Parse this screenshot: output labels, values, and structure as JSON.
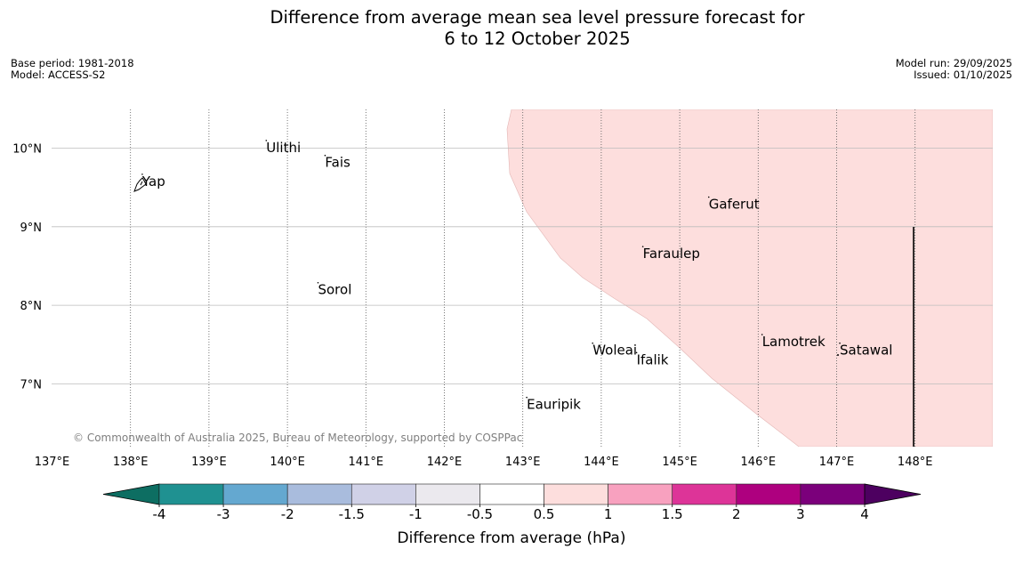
{
  "title": {
    "line1": "Difference from average mean sea level pressure forecast for",
    "line2": "6 to 12 October 2025"
  },
  "meta": {
    "base_period": "Base period: 1981-2018",
    "model": "Model: ACCESS-S2",
    "model_run": "Model run: 29/09/2025",
    "issued": "Issued: 01/10/2025"
  },
  "map": {
    "lon_labels": [
      "137°E",
      "138°E",
      "139°E",
      "140°E",
      "141°E",
      "142°E",
      "143°E",
      "144°E",
      "145°E",
      "146°E",
      "147°E",
      "148°E"
    ],
    "lat_labels": [
      "10°N",
      "9°N",
      "8°N",
      "7°N"
    ],
    "places": [
      {
        "name": "Ulithi",
        "lon": 139.73,
        "lat": 9.95
      },
      {
        "name": "Fais",
        "lon": 140.48,
        "lat": 9.76
      },
      {
        "name": "Yap",
        "lon": 138.15,
        "lat": 9.52
      },
      {
        "name": "Gaferut",
        "lon": 145.37,
        "lat": 9.23
      },
      {
        "name": "Faraulep",
        "lon": 144.53,
        "lat": 8.6
      },
      {
        "name": "Sorol",
        "lon": 140.39,
        "lat": 8.14
      },
      {
        "name": "Lamotrek",
        "lon": 146.05,
        "lat": 7.48
      },
      {
        "name": "Satawal",
        "lon": 147.04,
        "lat": 7.37
      },
      {
        "name": "Woleai",
        "lon": 143.89,
        "lat": 7.37
      },
      {
        "name": "Ifalik",
        "lon": 144.45,
        "lat": 7.25
      },
      {
        "name": "Eauripik",
        "lon": 143.05,
        "lat": 6.68
      }
    ],
    "anomaly_band": "0.5 to 1",
    "copyright": "© Commonwealth of Australia 2025, Bureau of Meteorology, supported by COSPPac"
  },
  "colorbar": {
    "label": "Difference from average (hPa)",
    "ticks": [
      "-4",
      "-3",
      "-2",
      "-1.5",
      "-1",
      "-0.5",
      "0.5",
      "1",
      "1.5",
      "2",
      "3",
      "4"
    ],
    "colors": [
      "#0d6e62",
      "#1f9191",
      "#64a8d0",
      "#a9bcdd",
      "#d0d1e7",
      "#ebe9ee",
      "#ffffff",
      "#fddedd",
      "#f8a1bf",
      "#dd3498",
      "#ae007f",
      "#7b007b",
      "#4d0060"
    ]
  }
}
